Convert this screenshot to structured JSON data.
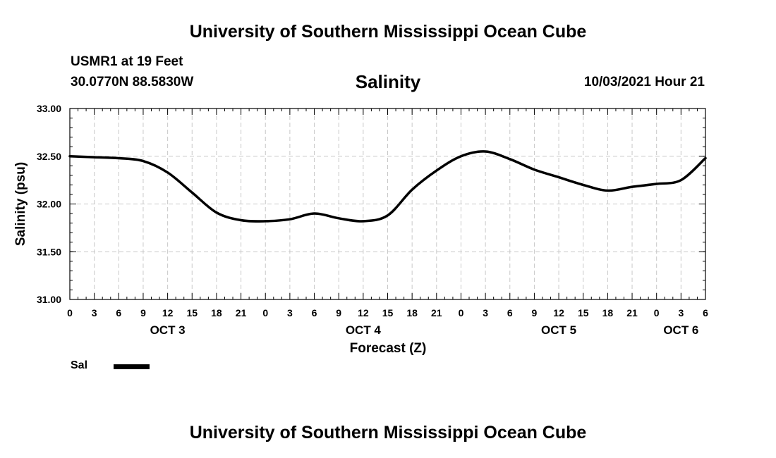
{
  "header": {
    "title": "University of Southern Mississippi Ocean Cube",
    "station": "USMR1 at 19 Feet",
    "coordinates": "30.0770N  88.5830W",
    "chart_heading": "Salinity",
    "timestamp": "10/03/2021 Hour 21"
  },
  "footer": {
    "title": "University of Southern Mississippi Ocean Cube"
  },
  "legend": {
    "label": "Sal",
    "color": "#000000"
  },
  "chart_data": {
    "type": "line",
    "title": "Salinity",
    "xlabel": "Forecast (Z)",
    "ylabel": "Salinity (psu)",
    "xlim": [
      0,
      78
    ],
    "ylim": [
      31.0,
      33.0
    ],
    "grid": true,
    "x_ticks": [
      0,
      3,
      6,
      9,
      12,
      15,
      18,
      21,
      24,
      27,
      30,
      33,
      36,
      39,
      42,
      45,
      48,
      51,
      54,
      57,
      60,
      63,
      66,
      69,
      72,
      75,
      78
    ],
    "x_tick_labels": [
      "0",
      "3",
      "6",
      "9",
      "12",
      "15",
      "18",
      "21",
      "0",
      "3",
      "6",
      "9",
      "12",
      "15",
      "18",
      "21",
      "0",
      "3",
      "6",
      "9",
      "12",
      "15",
      "18",
      "21",
      "0",
      "3",
      "6"
    ],
    "day_labels": [
      {
        "label": "OCT 3",
        "x": 12
      },
      {
        "label": "OCT 4",
        "x": 36
      },
      {
        "label": "OCT 5",
        "x": 60
      },
      {
        "label": "OCT 6",
        "x": 75
      }
    ],
    "y_ticks": [
      31.0,
      31.5,
      32.0,
      32.5,
      33.0
    ],
    "y_tick_labels": [
      "31.00",
      "31.50",
      "32.00",
      "32.50",
      "33.00"
    ],
    "series": [
      {
        "name": "Sal",
        "x": [
          0,
          3,
          6,
          9,
          12,
          15,
          18,
          21,
          24,
          27,
          30,
          33,
          36,
          39,
          42,
          45,
          48,
          51,
          54,
          57,
          60,
          63,
          66,
          69,
          72,
          75,
          78
        ],
        "values": [
          32.5,
          32.49,
          32.48,
          32.45,
          32.33,
          32.12,
          31.91,
          31.83,
          31.82,
          31.84,
          31.9,
          31.85,
          31.82,
          31.88,
          32.15,
          32.35,
          32.5,
          32.55,
          32.47,
          32.36,
          32.28,
          32.2,
          32.14,
          32.18,
          32.21,
          32.25,
          32.48
        ]
      }
    ]
  }
}
